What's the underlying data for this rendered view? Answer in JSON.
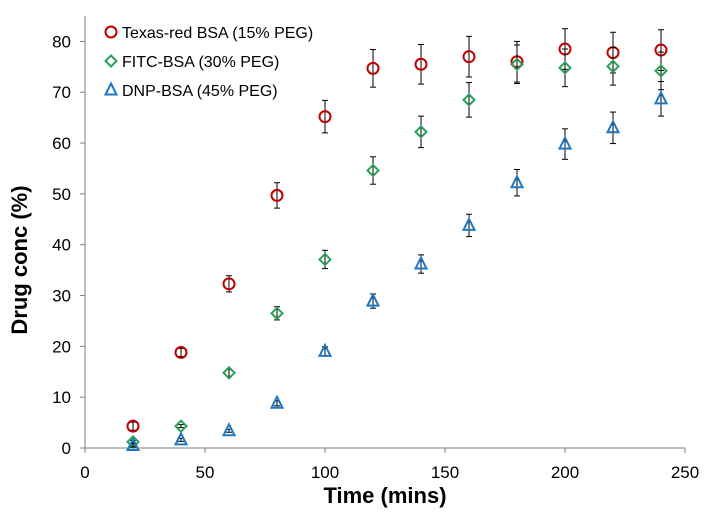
{
  "chart_data": {
    "type": "scatter",
    "xlabel": "Time (mins)",
    "ylabel": "Drug conc (%)",
    "xlim": [
      0,
      250
    ],
    "ylim": [
      0,
      85
    ],
    "xticks": [
      0,
      50,
      100,
      150,
      200,
      250
    ],
    "yticks": [
      0,
      10,
      20,
      30,
      40,
      50,
      60,
      70,
      80
    ],
    "grid": false,
    "legend_position": "top-left",
    "error_bars": true,
    "series": [
      {
        "name": "Texas-red BSA (15% PEG)",
        "marker": "circle",
        "color": "#c00000",
        "points": [
          {
            "x": 20,
            "y": 4.3,
            "err": 0.8
          },
          {
            "x": 40,
            "y": 18.8,
            "err": 0.8
          },
          {
            "x": 60,
            "y": 32.3,
            "err": 1.6
          },
          {
            "x": 80,
            "y": 49.7,
            "err": 2.5
          },
          {
            "x": 100,
            "y": 65.2,
            "err": 3.2
          },
          {
            "x": 120,
            "y": 74.7,
            "err": 3.7
          },
          {
            "x": 140,
            "y": 75.5,
            "err": 3.9
          },
          {
            "x": 160,
            "y": 77.0,
            "err": 4.0
          },
          {
            "x": 180,
            "y": 76.0,
            "err": 4.0
          },
          {
            "x": 200,
            "y": 78.5,
            "err": 4.0
          },
          {
            "x": 220,
            "y": 77.8,
            "err": 4.0
          },
          {
            "x": 240,
            "y": 78.3,
            "err": 4.0
          }
        ]
      },
      {
        "name": "FITC-BSA (30% PEG)",
        "marker": "diamond",
        "color": "#2ca05a",
        "points": [
          {
            "x": 20,
            "y": 1.2,
            "err": 0.3
          },
          {
            "x": 40,
            "y": 4.3,
            "err": 0.3
          },
          {
            "x": 60,
            "y": 14.8,
            "err": 0.7
          },
          {
            "x": 80,
            "y": 26.5,
            "err": 1.3
          },
          {
            "x": 100,
            "y": 37.1,
            "err": 1.8
          },
          {
            "x": 120,
            "y": 54.6,
            "err": 2.7
          },
          {
            "x": 140,
            "y": 62.2,
            "err": 3.1
          },
          {
            "x": 160,
            "y": 68.5,
            "err": 3.4
          },
          {
            "x": 180,
            "y": 75.5,
            "err": 3.8
          },
          {
            "x": 200,
            "y": 74.8,
            "err": 3.7
          },
          {
            "x": 220,
            "y": 75.1,
            "err": 3.7
          },
          {
            "x": 240,
            "y": 74.2,
            "err": 3.7
          }
        ]
      },
      {
        "name": "DNP-BSA (45% PEG)",
        "marker": "triangle",
        "color": "#1f77c4",
        "points": [
          {
            "x": 20,
            "y": 0.5,
            "err": 0.3
          },
          {
            "x": 40,
            "y": 1.6,
            "err": 0.3
          },
          {
            "x": 60,
            "y": 3.4,
            "err": 0.3
          },
          {
            "x": 80,
            "y": 8.8,
            "err": 0.5
          },
          {
            "x": 100,
            "y": 19.0,
            "err": 0.9
          },
          {
            "x": 120,
            "y": 28.9,
            "err": 1.4
          },
          {
            "x": 140,
            "y": 36.2,
            "err": 1.8
          },
          {
            "x": 160,
            "y": 43.8,
            "err": 2.2
          },
          {
            "x": 180,
            "y": 52.2,
            "err": 2.6
          },
          {
            "x": 200,
            "y": 59.8,
            "err": 3.0
          },
          {
            "x": 220,
            "y": 63.0,
            "err": 3.1
          },
          {
            "x": 240,
            "y": 68.7,
            "err": 3.4
          }
        ]
      }
    ]
  }
}
